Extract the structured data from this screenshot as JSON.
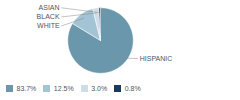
{
  "chart_data": {
    "type": "pie",
    "categories": [
      "HISPANIC",
      "WHITE",
      "BLACK",
      "ASIAN"
    ],
    "values": [
      83.7,
      12.5,
      3.0,
      0.8
    ],
    "value_labels": [
      "83.7%",
      "12.5%",
      "3.0%",
      "0.8%"
    ],
    "colors": [
      "#6b97ad",
      "#a3c4d5",
      "#ccdde8",
      "#1a3a5c"
    ],
    "legend": "bottom"
  }
}
